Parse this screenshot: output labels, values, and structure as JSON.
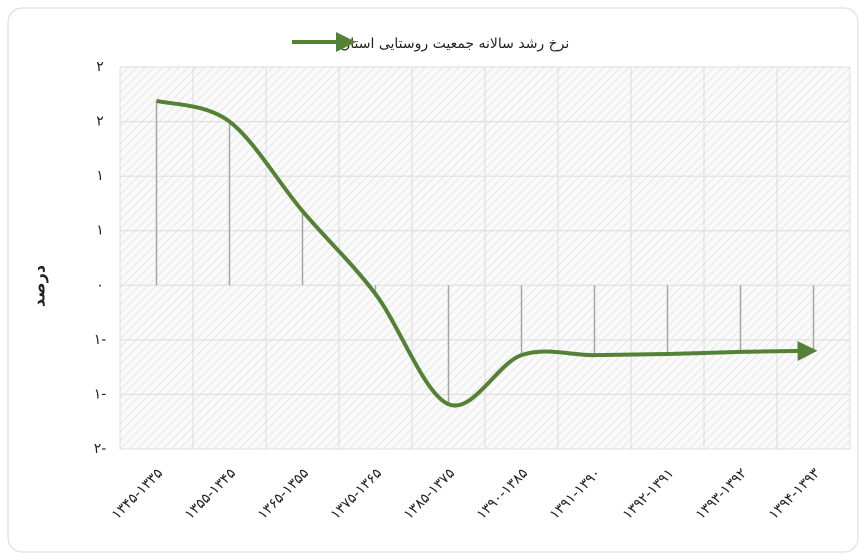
{
  "chart_data": {
    "type": "line",
    "legend_label": "نرخ رشد سالانه جمعیت روستایی استان",
    "y_label": "درصد",
    "categories": [
      "۱۳۴۵-۱۳۳۵",
      "۱۳۵۵-۱۳۴۵",
      "۱۳۶۵-۱۳۵۵",
      "۱۳۷۵-۱۳۶۵",
      "۱۳۸۵-۱۳۷۵",
      "۱۳۹۰-۱۳۸۵",
      "۱۳۹۱-۱۳۹۰",
      "۱۳۹۲-۱۳۹۱",
      "۱۳۹۳-۱۳۹۲",
      "۱۳۹۴-۱۳۹۳"
    ],
    "series": [
      {
        "name": "نرخ رشد سالانه جمعیت روستایی استان",
        "color": "#538135",
        "values": [
          1.69,
          1.5,
          0.68,
          -0.08,
          -1.09,
          -0.64,
          -0.64,
          -0.63,
          -0.61,
          -0.6
        ]
      }
    ],
    "ylim": [
      -1.5,
      2
    ],
    "yticks": [
      {
        "value": -1.5,
        "label": "۲-"
      },
      {
        "value": -1,
        "label": "۱-"
      },
      {
        "value": -0.5,
        "label": "۱-"
      },
      {
        "value": 0,
        "label": "۰"
      },
      {
        "value": 0.5,
        "label": "۱"
      },
      {
        "value": 1,
        "label": "۱"
      },
      {
        "value": 1.5,
        "label": "۲"
      },
      {
        "value": 2,
        "label": "۲"
      }
    ],
    "grid": true
  }
}
